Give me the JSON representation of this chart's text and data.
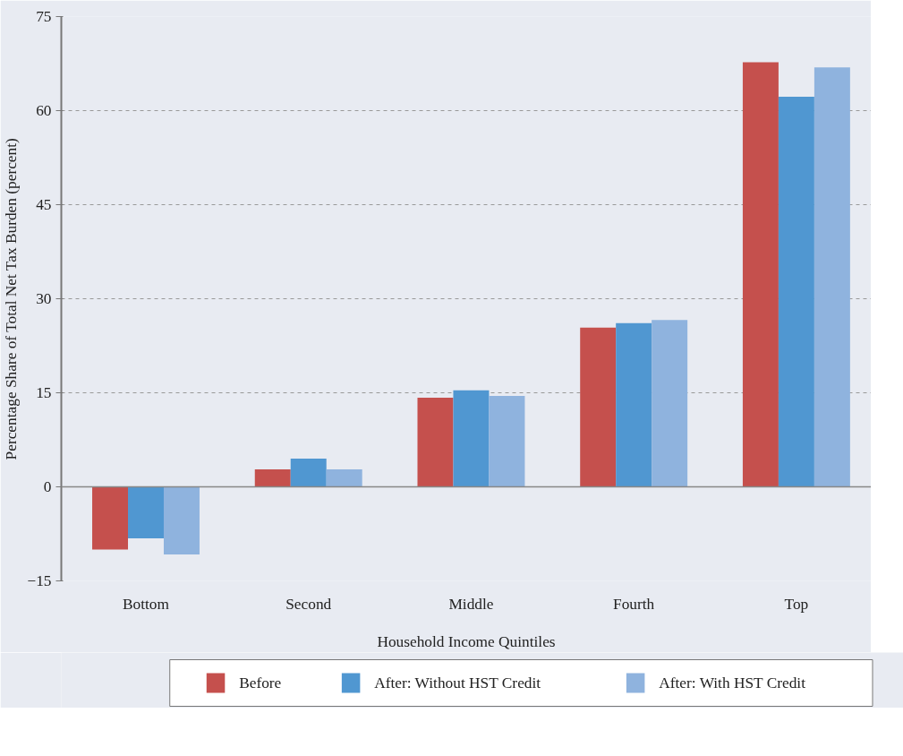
{
  "chart_data": {
    "type": "bar",
    "xlabel": "Household Income Quintiles",
    "ylabel": "Percentage Share of Total Net Tax Burden (percent)",
    "categories": [
      "Bottom",
      "Second",
      "Middle",
      "Fourth",
      "Top"
    ],
    "series": [
      {
        "name": "Before",
        "color": "#c5504d",
        "values": [
          -10.0,
          2.8,
          14.2,
          25.4,
          67.7
        ]
      },
      {
        "name": "After: Without HST Credit",
        "color": "#5097d1",
        "values": [
          -8.2,
          4.5,
          15.4,
          26.1,
          62.2
        ]
      },
      {
        "name": "After: With HST Credit",
        "color": "#8fb3de",
        "values": [
          -10.8,
          2.8,
          14.5,
          26.6,
          66.9
        ]
      }
    ],
    "ylim": [
      -15,
      75
    ],
    "yticks": [
      -15,
      0,
      15,
      30,
      45,
      60,
      75
    ],
    "grid": "y",
    "legend": "bottom"
  }
}
